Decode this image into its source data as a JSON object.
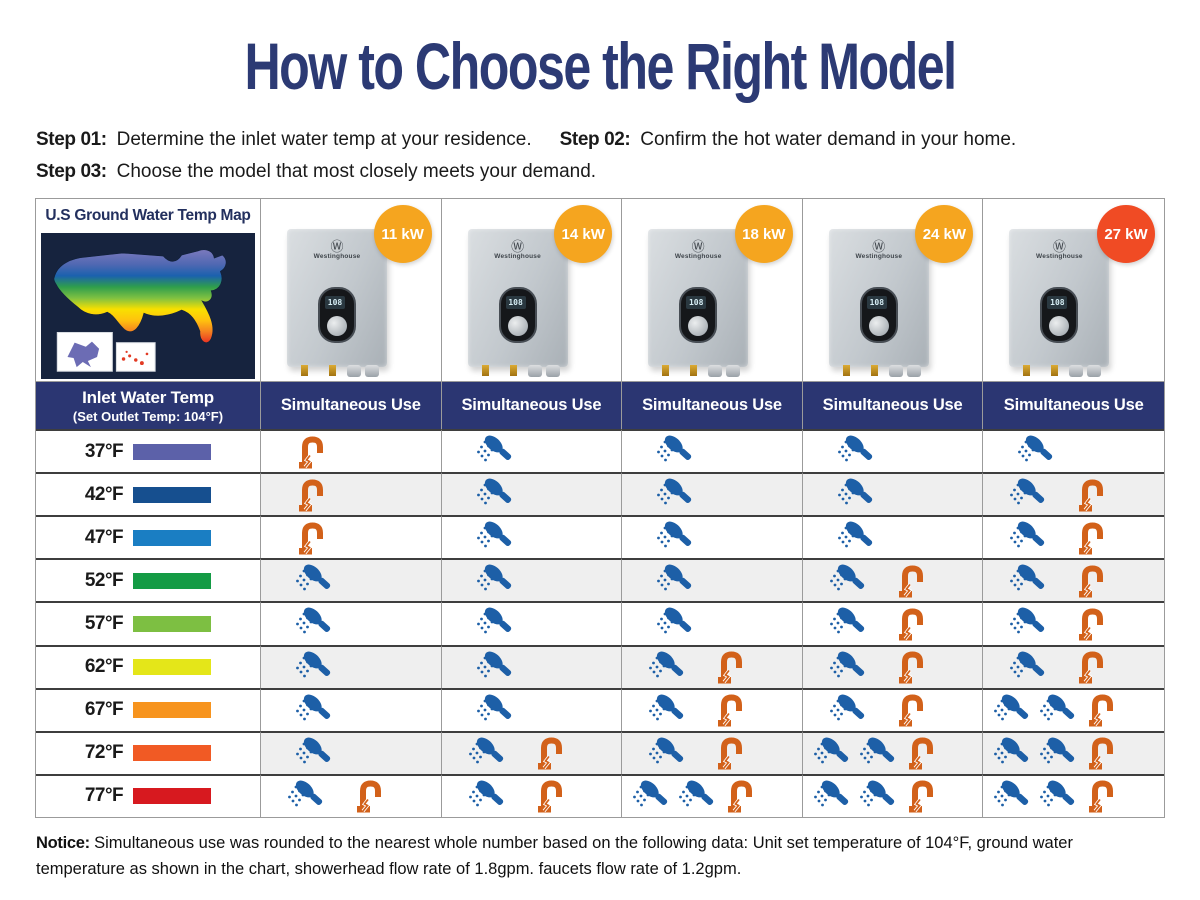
{
  "title": "How to Choose the Right Model",
  "steps": [
    {
      "label": "Step 01:",
      "text": "Determine the inlet water temp at your residence."
    },
    {
      "label": "Step 02:",
      "text": "Confirm the hot water demand in your home."
    },
    {
      "label": "Step 03:",
      "text": "Choose the model that most closely meets your demand."
    }
  ],
  "map": {
    "title": "U.S Ground Water Temp Map",
    "insets": [
      "Alaska",
      "Hawaii"
    ]
  },
  "inlet_header": {
    "line1": "Inlet Water Temp",
    "line2": "(Set Outlet Temp: 104°F)"
  },
  "brand": "Westinghouse",
  "heater_display": "108",
  "products": [
    {
      "power": "11 kW",
      "badge_color": "#F5A51F",
      "column_header": "Simultaneous Use"
    },
    {
      "power": "14 kW",
      "badge_color": "#F5A51F",
      "column_header": "Simultaneous Use"
    },
    {
      "power": "18 kW",
      "badge_color": "#F5A51F",
      "column_header": "Simultaneous Use"
    },
    {
      "power": "24 kW",
      "badge_color": "#F5A51F",
      "column_header": "Simultaneous Use"
    },
    {
      "power": "27 kW",
      "badge_color": "#F04B24",
      "column_header": "Simultaneous Use"
    }
  ],
  "rows": [
    {
      "temp": "37°F",
      "bar_color": "#5C61A9",
      "cells": [
        {
          "showers": 0,
          "faucets": 1
        },
        {
          "showers": 1,
          "faucets": 0
        },
        {
          "showers": 1,
          "faucets": 0
        },
        {
          "showers": 1,
          "faucets": 0
        },
        {
          "showers": 1,
          "faucets": 0
        }
      ]
    },
    {
      "temp": "42°F",
      "bar_color": "#164F8F",
      "cells": [
        {
          "showers": 0,
          "faucets": 1
        },
        {
          "showers": 1,
          "faucets": 0
        },
        {
          "showers": 1,
          "faucets": 0
        },
        {
          "showers": 1,
          "faucets": 0
        },
        {
          "showers": 1,
          "faucets": 1
        }
      ]
    },
    {
      "temp": "47°F",
      "bar_color": "#1A7EC3",
      "cells": [
        {
          "showers": 0,
          "faucets": 1
        },
        {
          "showers": 1,
          "faucets": 0
        },
        {
          "showers": 1,
          "faucets": 0
        },
        {
          "showers": 1,
          "faucets": 0
        },
        {
          "showers": 1,
          "faucets": 1
        }
      ]
    },
    {
      "temp": "52°F",
      "bar_color": "#149B45",
      "cells": [
        {
          "showers": 1,
          "faucets": 0
        },
        {
          "showers": 1,
          "faucets": 0
        },
        {
          "showers": 1,
          "faucets": 0
        },
        {
          "showers": 1,
          "faucets": 1
        },
        {
          "showers": 1,
          "faucets": 1
        }
      ]
    },
    {
      "temp": "57°F",
      "bar_color": "#7DBF42",
      "cells": [
        {
          "showers": 1,
          "faucets": 0
        },
        {
          "showers": 1,
          "faucets": 0
        },
        {
          "showers": 1,
          "faucets": 0
        },
        {
          "showers": 1,
          "faucets": 1
        },
        {
          "showers": 1,
          "faucets": 1
        }
      ]
    },
    {
      "temp": "62°F",
      "bar_color": "#E4E619",
      "cells": [
        {
          "showers": 1,
          "faucets": 0
        },
        {
          "showers": 1,
          "faucets": 0
        },
        {
          "showers": 1,
          "faucets": 1
        },
        {
          "showers": 1,
          "faucets": 1
        },
        {
          "showers": 1,
          "faucets": 1
        }
      ]
    },
    {
      "temp": "67°F",
      "bar_color": "#F7941E",
      "cells": [
        {
          "showers": 1,
          "faucets": 0
        },
        {
          "showers": 1,
          "faucets": 0
        },
        {
          "showers": 1,
          "faucets": 1
        },
        {
          "showers": 1,
          "faucets": 1
        },
        {
          "showers": 2,
          "faucets": 1
        }
      ]
    },
    {
      "temp": "72°F",
      "bar_color": "#F15A24",
      "cells": [
        {
          "showers": 1,
          "faucets": 0
        },
        {
          "showers": 1,
          "faucets": 1
        },
        {
          "showers": 1,
          "faucets": 1
        },
        {
          "showers": 2,
          "faucets": 1
        },
        {
          "showers": 2,
          "faucets": 1
        }
      ]
    },
    {
      "temp": "77°F",
      "bar_color": "#D7191F",
      "cells": [
        {
          "showers": 1,
          "faucets": 1
        },
        {
          "showers": 1,
          "faucets": 1
        },
        {
          "showers": 2,
          "faucets": 1
        },
        {
          "showers": 2,
          "faucets": 1
        },
        {
          "showers": 2,
          "faucets": 1
        }
      ]
    }
  ],
  "icons": {
    "shower_icon": "showerhead",
    "faucet_icon": "faucet-with-drip",
    "shower_color": "#1D5FA7",
    "faucet_color": "#D2611A"
  },
  "colors": {
    "navy": "#2B3672",
    "title": "#2C3A74",
    "alt_row": "#EFEFEF",
    "grid_dark": "#3E3E3E",
    "grid_gray": "#9B9B9B",
    "map_background": "#16233E",
    "badge_amber": "#F5A51F",
    "badge_red": "#F04B24"
  },
  "notice": {
    "label": "Notice:",
    "text": "Simultaneous use was rounded to the nearest whole number based on the following data: Unit set temperature of 104°F, ground water temperature as shown in the chart, showerhead flow rate of 1.8gpm. faucets flow rate of 1.2gpm."
  }
}
